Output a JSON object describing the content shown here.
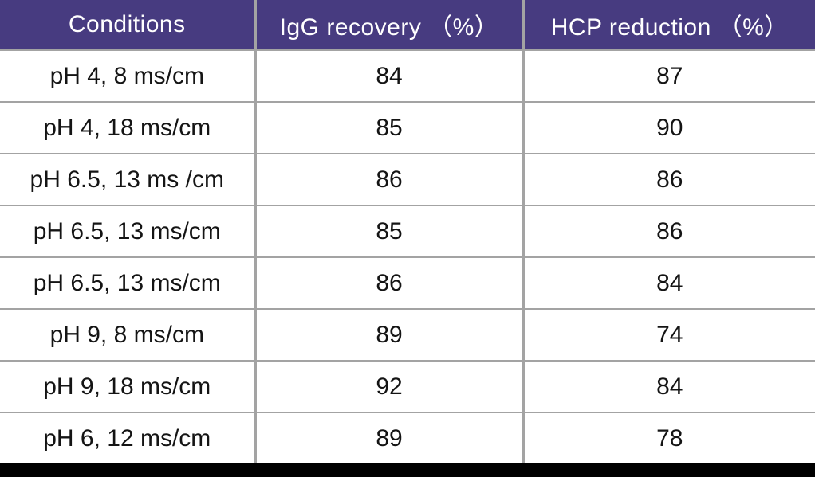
{
  "table": {
    "columns": [
      "Conditions",
      "IgG recovery （%）",
      "HCP reduction （%）"
    ],
    "rows": [
      [
        "pH 4, 8 ms/cm",
        "84",
        "87"
      ],
      [
        "pH 4, 18 ms/cm",
        "85",
        "90"
      ],
      [
        "pH 6.5, 13 ms /cm",
        "86",
        "86"
      ],
      [
        "pH 6.5, 13 ms/cm",
        "85",
        "86"
      ],
      [
        "pH 6.5, 13 ms/cm",
        "86",
        "84"
      ],
      [
        "pH 9, 8 ms/cm",
        "89",
        "74"
      ],
      [
        "pH 9, 18 ms/cm",
        "92",
        "84"
      ],
      [
        "pH 6, 12 ms/cm",
        "89",
        "78"
      ]
    ]
  },
  "colors": {
    "header_background": "#473b80",
    "header_text": "#ffffff",
    "grid_line": "#a3a3a3",
    "body_text": "#141414",
    "bottom_bar": "#000000"
  },
  "chart_data": {
    "type": "table",
    "title": "",
    "columns": [
      "Conditions",
      "IgG recovery (%)",
      "HCP reduction (%)"
    ],
    "categories": [
      "pH 4, 8 ms/cm",
      "pH 4, 18 ms/cm",
      "pH 6.5, 13 ms /cm",
      "pH 6.5, 13 ms/cm",
      "pH 6.5, 13 ms/cm",
      "pH 9, 8 ms/cm",
      "pH 9, 18 ms/cm",
      "pH 6, 12 ms/cm"
    ],
    "series": [
      {
        "name": "IgG recovery (%)",
        "values": [
          84,
          85,
          86,
          85,
          86,
          89,
          92,
          89
        ]
      },
      {
        "name": "HCP reduction (%)",
        "values": [
          87,
          90,
          86,
          86,
          84,
          74,
          84,
          78
        ]
      }
    ]
  }
}
